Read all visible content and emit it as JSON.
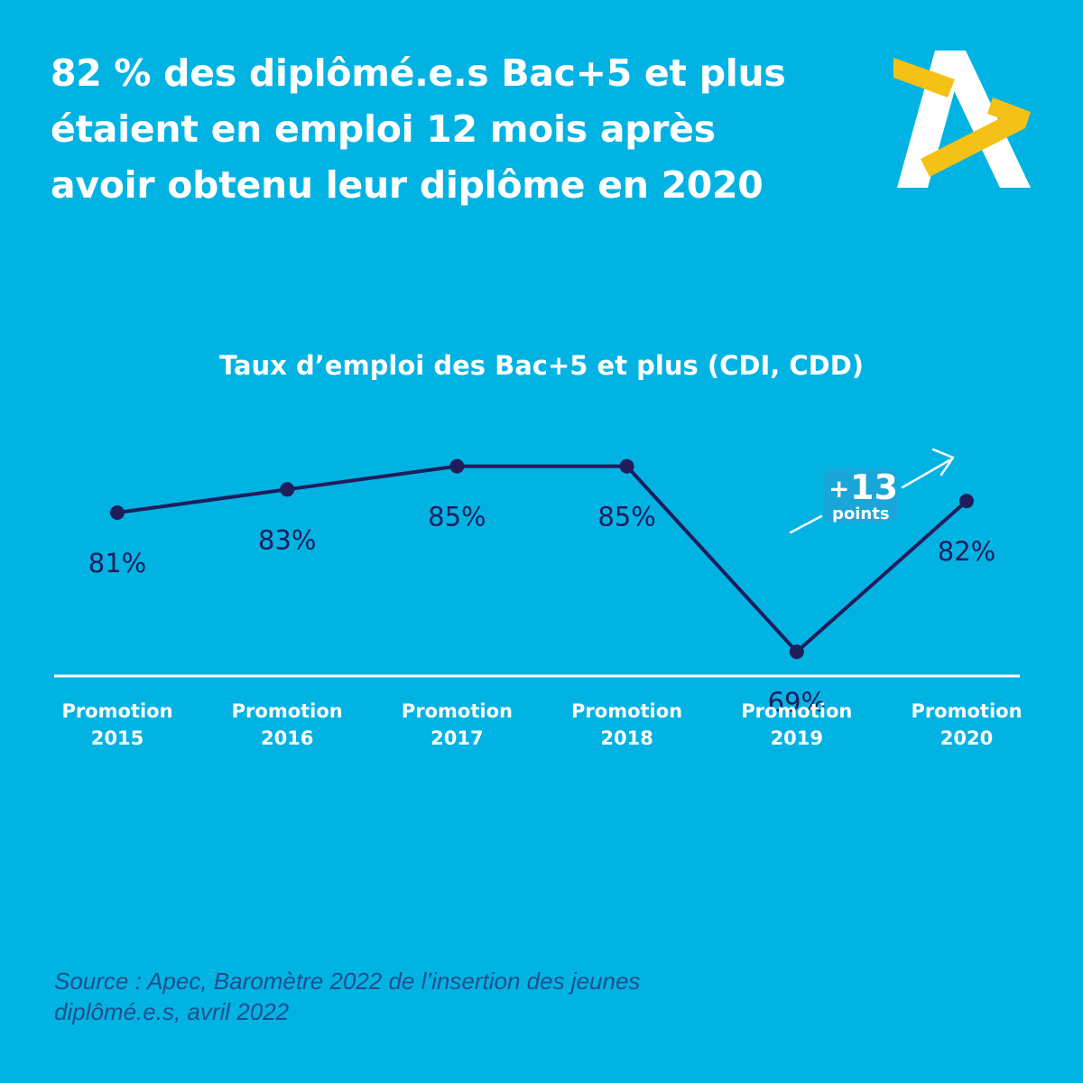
{
  "headline": {
    "line1": "82 % des diplômé.e.s Bac+5 et plus",
    "line2": "étaient en emploi 12 mois après",
    "line3": "avoir obtenu leur diplôme en 2020"
  },
  "logo": {
    "icon": "apec-logo-icon"
  },
  "colors": {
    "background": "#00b3e3",
    "line": "#1f1d5c",
    "accent_yellow": "#f5c116",
    "text_white": "#ffffff",
    "source_text": "#1f4f8c"
  },
  "chart_data": {
    "type": "line",
    "title": "Taux d’emploi des Bac+5 et plus (CDI, CDD)",
    "categories": [
      "Promotion 2015",
      "Promotion 2016",
      "Promotion 2017",
      "Promotion 2018",
      "Promotion 2019",
      "Promotion 2020"
    ],
    "category_lines": [
      [
        "Promotion",
        "2015"
      ],
      [
        "Promotion",
        "2016"
      ],
      [
        "Promotion",
        "2017"
      ],
      [
        "Promotion",
        "2018"
      ],
      [
        "Promotion",
        "2019"
      ],
      [
        "Promotion",
        "2020"
      ]
    ],
    "values": [
      81,
      83,
      85,
      85,
      69,
      82
    ],
    "value_labels": [
      "81%",
      "83%",
      "85%",
      "85%",
      "69%",
      "82%"
    ],
    "unit": "%",
    "ylim": [
      60,
      90
    ],
    "xlabel": "",
    "ylabel": "",
    "grid": false,
    "annotation": {
      "big": "13",
      "prefix": "+",
      "small": "points",
      "icon": "arrow-up-right-icon"
    }
  },
  "source": {
    "line1": "Source :  Apec, Baromètre 2022 de l’insertion des jeunes",
    "line2": "diplômé.e.s, avril 2022"
  }
}
